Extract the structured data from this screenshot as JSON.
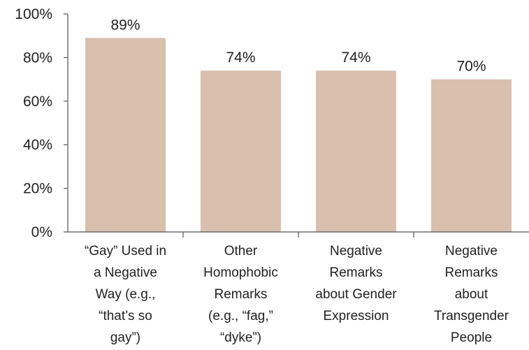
{
  "chart_data": {
    "type": "bar",
    "title": "",
    "xlabel": "",
    "ylabel": "",
    "ylim": [
      0,
      100
    ],
    "y_ticks": [
      "0%",
      "20%",
      "40%",
      "60%",
      "80%",
      "100%"
    ],
    "y_tick_values": [
      0,
      20,
      40,
      60,
      80,
      100
    ],
    "categories": [
      [
        "“Gay” Used in",
        "a Negative",
        "Way (e.g.,",
        "“that’s so",
        "gay”)"
      ],
      [
        "Other",
        "Homophobic",
        "Remarks",
        "(e.g., “fag,”",
        "“dyke”)"
      ],
      [
        "Negative",
        "Remarks",
        "about Gender",
        "Expression"
      ],
      [
        "Negative",
        "Remarks",
        "about",
        "Transgender",
        "People"
      ]
    ],
    "values": [
      89,
      74,
      74,
      70
    ],
    "data_labels": [
      "89%",
      "74%",
      "74%",
      "70%"
    ],
    "grid": false,
    "legend": "none",
    "bar_color": "#d9bfae",
    "axis_color": "#555555"
  }
}
